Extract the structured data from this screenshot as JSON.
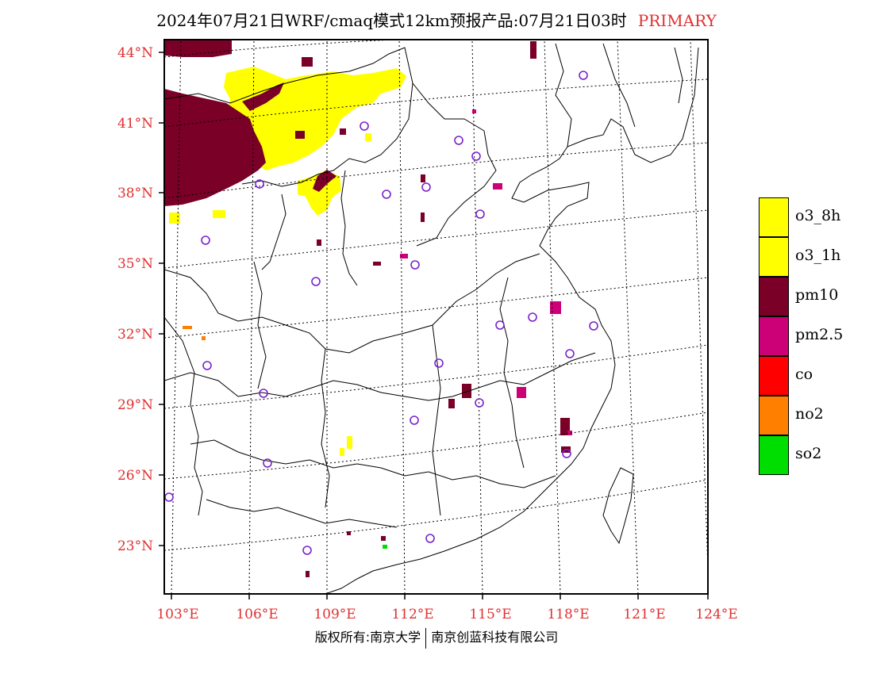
{
  "title": {
    "main": "2024年07月21日WRF/cmaq模式12km预报产品:07月21日03时",
    "tag": "PRIMARY"
  },
  "axes": {
    "lat_labels": [
      "44°N",
      "41°N",
      "38°N",
      "35°N",
      "32°N",
      "29°N",
      "26°N",
      "23°N"
    ],
    "lon_labels": [
      "103°E",
      "106°E",
      "109°E",
      "112°E",
      "115°E",
      "118°E",
      "121°E",
      "124°E"
    ]
  },
  "legend": [
    {
      "label": "o3_8h",
      "color": "#ffff00"
    },
    {
      "label": "o3_1h",
      "color": "#ffff00"
    },
    {
      "label": "pm10",
      "color": "#7a0028"
    },
    {
      "label": "pm2.5",
      "color": "#cc0077"
    },
    {
      "label": "co",
      "color": "#ff0000"
    },
    {
      "label": "no2",
      "color": "#ff7f00"
    },
    {
      "label": "so2",
      "color": "#00dd00"
    }
  ],
  "credit": {
    "left": "版权所有:南京大学",
    "right": "南京创蓝科技有限公司"
  }
}
